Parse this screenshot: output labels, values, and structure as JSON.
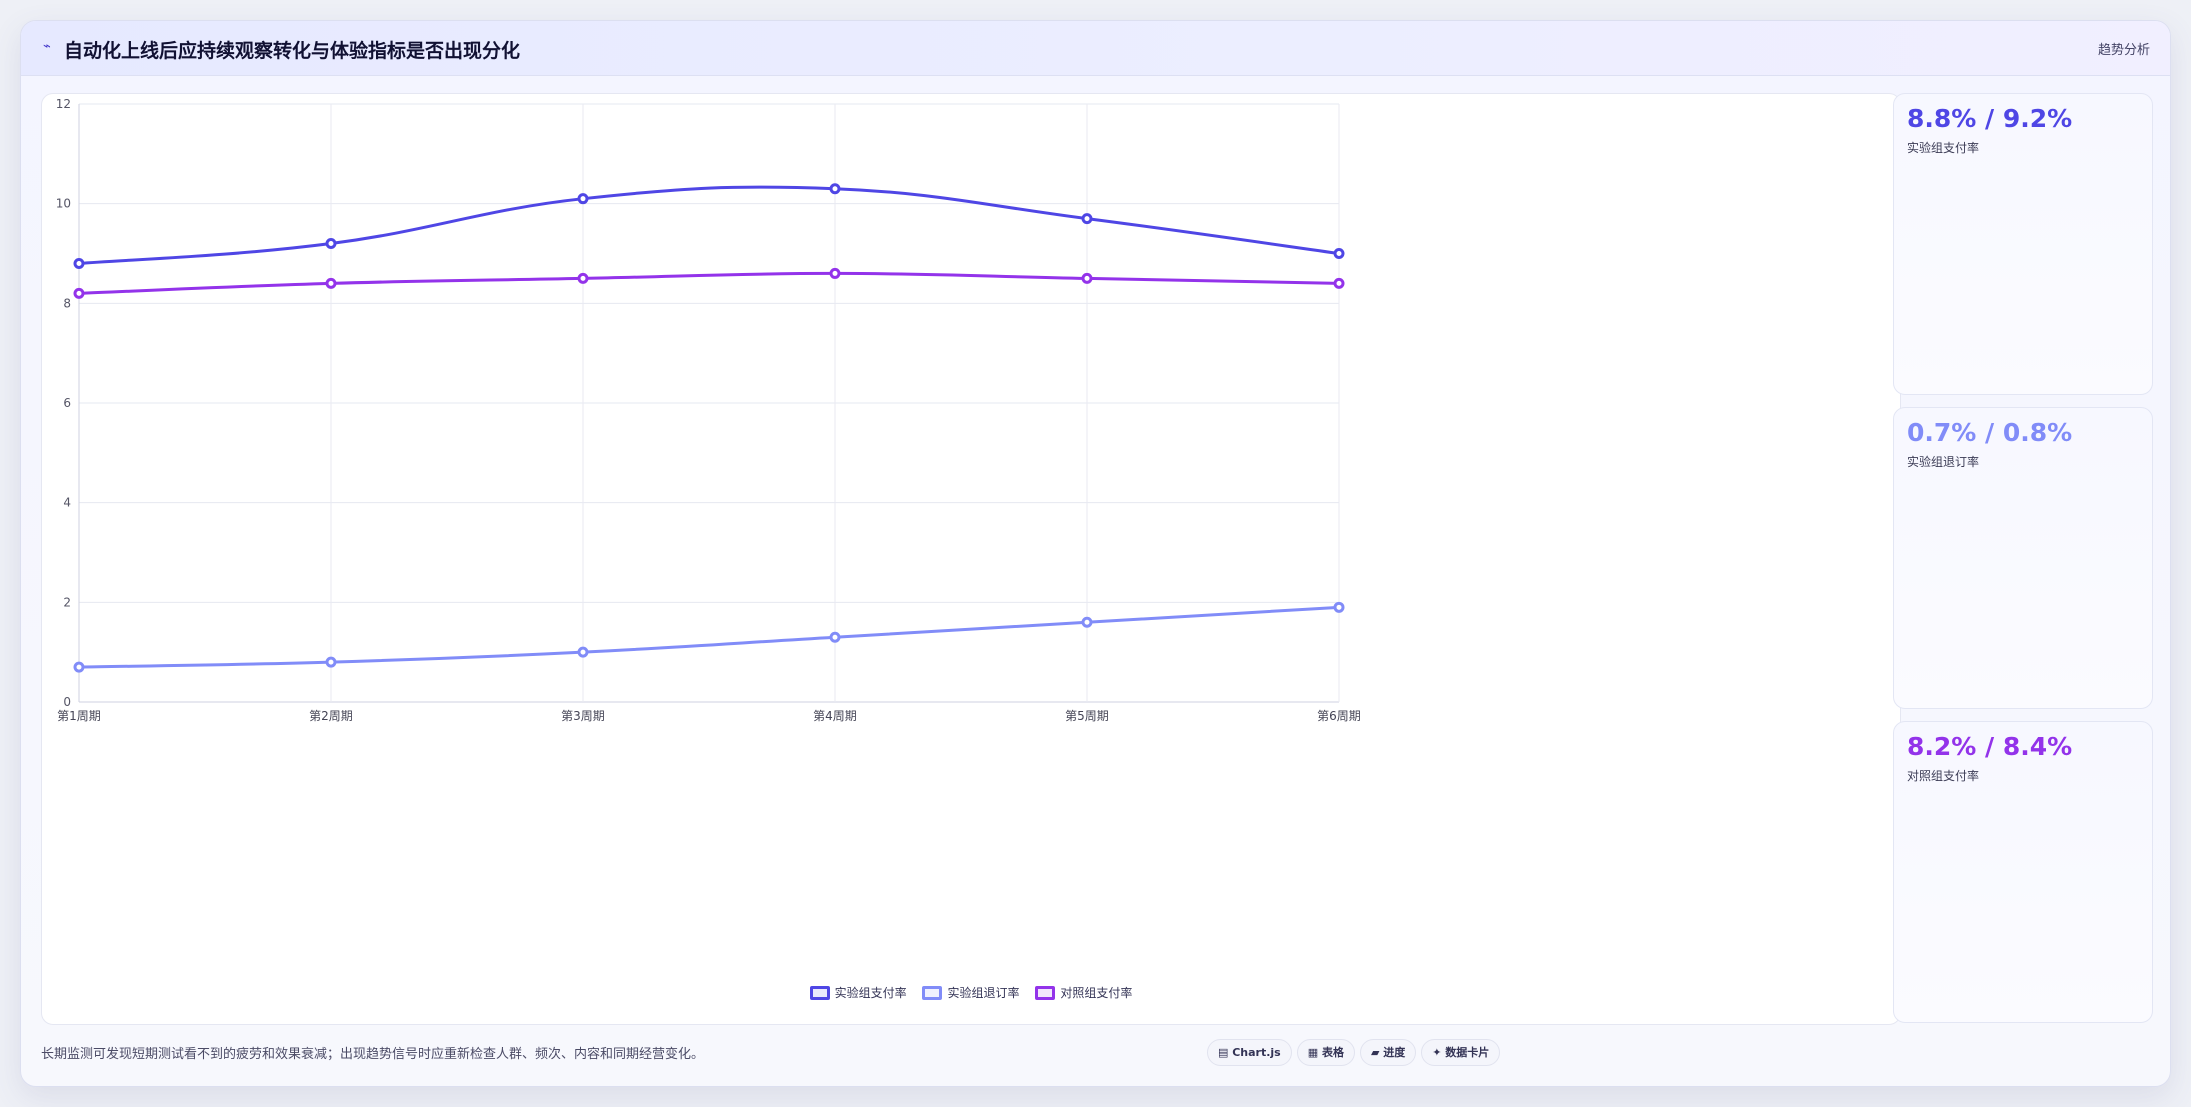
{
  "header": {
    "icon": "chart-trend-icon",
    "title": "自动化上线后应持续观察转化与体验指标是否出现分化",
    "action_label": "趋势分析"
  },
  "chart_data": {
    "type": "line",
    "categories": [
      "第1周期",
      "第2周期",
      "第3周期",
      "第4周期",
      "第5周期",
      "第6周期"
    ],
    "series": [
      {
        "name": "实验组支付率",
        "values": [
          8.8,
          9.2,
          10.1,
          10.3,
          9.7,
          9.0
        ],
        "color": "#4f46e5"
      },
      {
        "name": "实验组退订率",
        "values": [
          0.7,
          0.8,
          1.0,
          1.3,
          1.6,
          1.9
        ],
        "color": "#818cf8"
      },
      {
        "name": "对照组支付率",
        "values": [
          8.2,
          8.4,
          8.5,
          8.6,
          8.5,
          8.4
        ],
        "color": "#9333ea"
      }
    ],
    "ylim": [
      0,
      12
    ],
    "yticks": [
      "0",
      "2",
      "4",
      "6",
      "8",
      "10",
      "12"
    ],
    "grid": true,
    "legend_position": "bottom"
  },
  "stats": [
    {
      "value": "8.8% / 9.2%",
      "label": "实验组支付率",
      "color": "#4f46e5"
    },
    {
      "value": "0.7% / 0.8%",
      "label": "实验组退订率",
      "color": "#818cf8"
    },
    {
      "value": "8.2% / 8.4%",
      "label": "对照组支付率",
      "color": "#9333ea"
    }
  ],
  "footer": {
    "note": "长期监测可发现短期测试看不到的疲劳和效果衰减；出现趋势信号时应重新检查人群、频次、内容和同期经营变化。",
    "pills": [
      "▤ Chart.js",
      "▦ 表格",
      "▰ 进度",
      "✦ 数据卡片"
    ]
  }
}
